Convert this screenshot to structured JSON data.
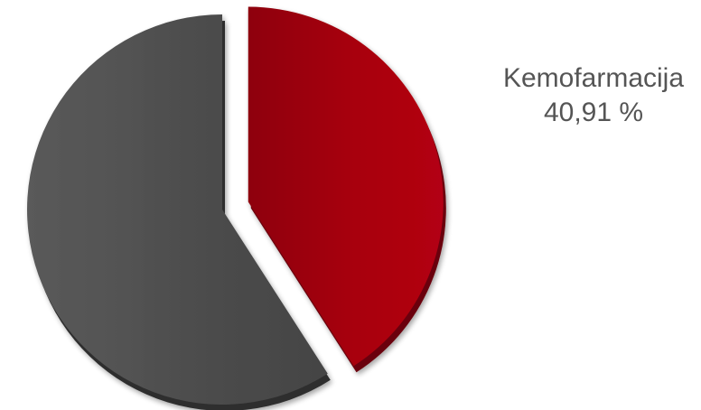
{
  "chart_data": {
    "type": "pie",
    "slices": [
      {
        "label": "Kemofarmacija",
        "value": 40.91,
        "value_text": "40,91 %",
        "color": "#a30010",
        "side_color": "#6a000a",
        "exploded": true
      },
      {
        "label": "",
        "value": 59.09,
        "color": "#4e4e4e",
        "side_color": "#2e2e2e",
        "exploded": false
      }
    ],
    "labels_shown": [
      "Kemofarmacija"
    ],
    "legend": "none"
  }
}
